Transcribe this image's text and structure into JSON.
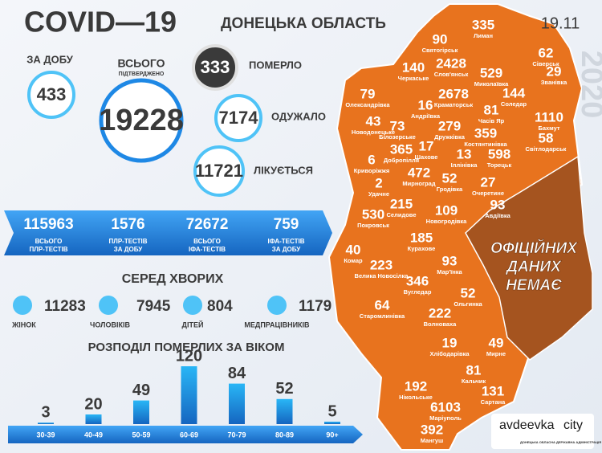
{
  "header": {
    "title": "COVID—19",
    "region": "ДОНЕЦЬКА ОБЛАСТЬ",
    "date": "19.11",
    "year": "2020"
  },
  "stats": {
    "daily": {
      "label": "ЗА ДОБУ",
      "value": 433
    },
    "total": {
      "label": "ВСЬОГО",
      "sublabel": "ПІДТВЕРДЖЕНО",
      "value": 19228
    },
    "died": {
      "label": "ПОМЕРЛО",
      "value": 333
    },
    "recovered": {
      "label": "ОДУЖАЛО",
      "value": 7174
    },
    "treated": {
      "label": "ЛІКУЄТЬСЯ",
      "value": 11721
    }
  },
  "tests": [
    {
      "value": 115963,
      "label": [
        "ВСЬОГО",
        "ПЛР-ТЕСТІВ"
      ]
    },
    {
      "value": 1576,
      "label": [
        "ПЛР-ТЕСТІВ",
        "ЗА ДОБУ"
      ]
    },
    {
      "value": 72672,
      "label": [
        "ВСЬОГО",
        "ІФА-ТЕСТІВ"
      ]
    },
    {
      "value": 759,
      "label": [
        "ІФА-ТЕСТІВ",
        "ЗА ДОБУ"
      ]
    }
  ],
  "sick": {
    "title": "СЕРЕД ХВОРИХ",
    "items": [
      {
        "value": 11283,
        "label": "ЖІНОК"
      },
      {
        "value": 7945,
        "label": "ЧОЛОВІКІВ"
      },
      {
        "value": 804,
        "label": "ДІТЕЙ"
      },
      {
        "value": 1179,
        "label": "МЕДПРАЦІВНИКІВ"
      }
    ]
  },
  "age_chart": {
    "type": "bar",
    "title": "РОЗПОДІЛ ПОМЕРЛИХ ЗА ВІКОМ",
    "categories": [
      "30-39",
      "40-49",
      "50-59",
      "60-69",
      "70-79",
      "80-89",
      "90+"
    ],
    "values": [
      3,
      20,
      49,
      120,
      84,
      52,
      5
    ]
  },
  "map": {
    "no_data": [
      "ОФІЦІЙНИХ",
      "ДАНИХ",
      "НЕМАЄ"
    ],
    "places": [
      {
        "value": 335,
        "name": "Лиман"
      },
      {
        "value": 90,
        "name": "Святогірськ"
      },
      {
        "value": 62,
        "name": "Сіверськ"
      },
      {
        "value": 140,
        "name": "Черкаське"
      },
      {
        "value": 2428,
        "name": "Слов'янськ"
      },
      {
        "value": 529,
        "name": "Миколаївка"
      },
      {
        "value": 29,
        "name": "Званівка"
      },
      {
        "value": 79,
        "name": "Олександрівка"
      },
      {
        "value": 2678,
        "name": "Краматорськ"
      },
      {
        "value": 144,
        "name": "Соледар"
      },
      {
        "value": 16,
        "name": "Андріївка"
      },
      {
        "value": 81,
        "name": "Часів Яр"
      },
      {
        "value": 43,
        "name": "Новодонецьке"
      },
      {
        "value": 73,
        "name": "Білозерське"
      },
      {
        "value": 279,
        "name": "Дружківка"
      },
      {
        "value": 1110,
        "name": "Бахмут"
      },
      {
        "value": 359,
        "name": "Костянтинівка"
      },
      {
        "value": 58,
        "name": "Світлодарськ"
      },
      {
        "value": 365,
        "name": "Добропілля"
      },
      {
        "value": 17,
        "name": "Шахове"
      },
      {
        "value": 13,
        "name": "Іллінівка"
      },
      {
        "value": 598,
        "name": "Торецьк"
      },
      {
        "value": 6,
        "name": "Криворіжжя"
      },
      {
        "value": 472,
        "name": "Мирноград"
      },
      {
        "value": 52,
        "name": "Гродівка"
      },
      {
        "value": 27,
        "name": "Очеретине"
      },
      {
        "value": 2,
        "name": "Удачне"
      },
      {
        "value": 215,
        "name": "Селидове"
      },
      {
        "value": 109,
        "name": "Новогродівка"
      },
      {
        "value": 93,
        "name": "Авдіївка"
      },
      {
        "value": 530,
        "name": "Покровськ"
      },
      {
        "value": 185,
        "name": "Курахове"
      },
      {
        "value": 40,
        "name": "Комар"
      },
      {
        "value": 223,
        "name": "Велика Новосілка"
      },
      {
        "value": 93,
        "name": "Мар'їнка"
      },
      {
        "value": 346,
        "name": "Вугледар"
      },
      {
        "value": 52,
        "name": "Ольгинка"
      },
      {
        "value": 64,
        "name": "Старомлинівка"
      },
      {
        "value": 222,
        "name": "Волноваха"
      },
      {
        "value": 19,
        "name": "Хлібодарівка"
      },
      {
        "value": 49,
        "name": "Мирне"
      },
      {
        "value": 81,
        "name": "Кальчик"
      },
      {
        "value": 192,
        "name": "Нікольське"
      },
      {
        "value": 131,
        "name": "Сартана"
      },
      {
        "value": 6103,
        "name": "Маріуполь"
      },
      {
        "value": 392,
        "name": "Мангуш"
      }
    ]
  },
  "logo": {
    "brand": "avdeevka",
    "suffix": "city",
    "org": "ДОНЕЦЬКА ОБЛАСНА ДЕРЖАВНА АДМІНІСТРАЦІЯ"
  }
}
